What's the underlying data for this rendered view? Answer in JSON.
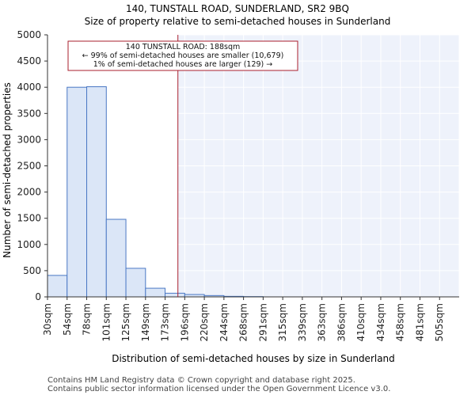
{
  "chart_data": {
    "type": "bar",
    "title_line1": "140, TUNSTALL ROAD, SUNDERLAND, SR2 9BQ",
    "title_line2": "Size of property relative to semi-detached houses in Sunderland",
    "xlabel": "Distribution of semi-detached houses by size in Sunderland",
    "ylabel": "Number of semi-detached properties",
    "ylim": [
      0,
      5000
    ],
    "yticks": [
      0,
      500,
      1000,
      1500,
      2000,
      2500,
      3000,
      3500,
      4000,
      4500,
      5000
    ],
    "categories": [
      "30sqm",
      "54sqm",
      "78sqm",
      "101sqm",
      "125sqm",
      "149sqm",
      "173sqm",
      "196sqm",
      "220sqm",
      "244sqm",
      "268sqm",
      "291sqm",
      "315sqm",
      "339sqm",
      "363sqm",
      "386sqm",
      "410sqm",
      "434sqm",
      "458sqm",
      "481sqm",
      "505sqm"
    ],
    "values": [
      410,
      4000,
      4010,
      1480,
      545,
      165,
      70,
      45,
      25,
      10,
      5,
      0,
      0,
      0,
      0,
      0,
      0,
      0,
      0,
      0,
      0
    ],
    "marker": {
      "value": 188,
      "line1": "140 TUNSTALL ROAD: 188sqm",
      "line2": "← 99% of semi-detached houses are smaller (10,679)",
      "line3": "1% of semi-detached houses are larger (129) →"
    },
    "colors": {
      "bar_fill": "#dbe6f7",
      "bar_stroke": "#4a78c4",
      "marker": "#aa1f2e",
      "shade": "#eef2fb"
    }
  },
  "footer": {
    "line1": "Contains HM Land Registry data © Crown copyright and database right 2025.",
    "line2": "Contains public sector information licensed under the Open Government Licence v3.0."
  }
}
